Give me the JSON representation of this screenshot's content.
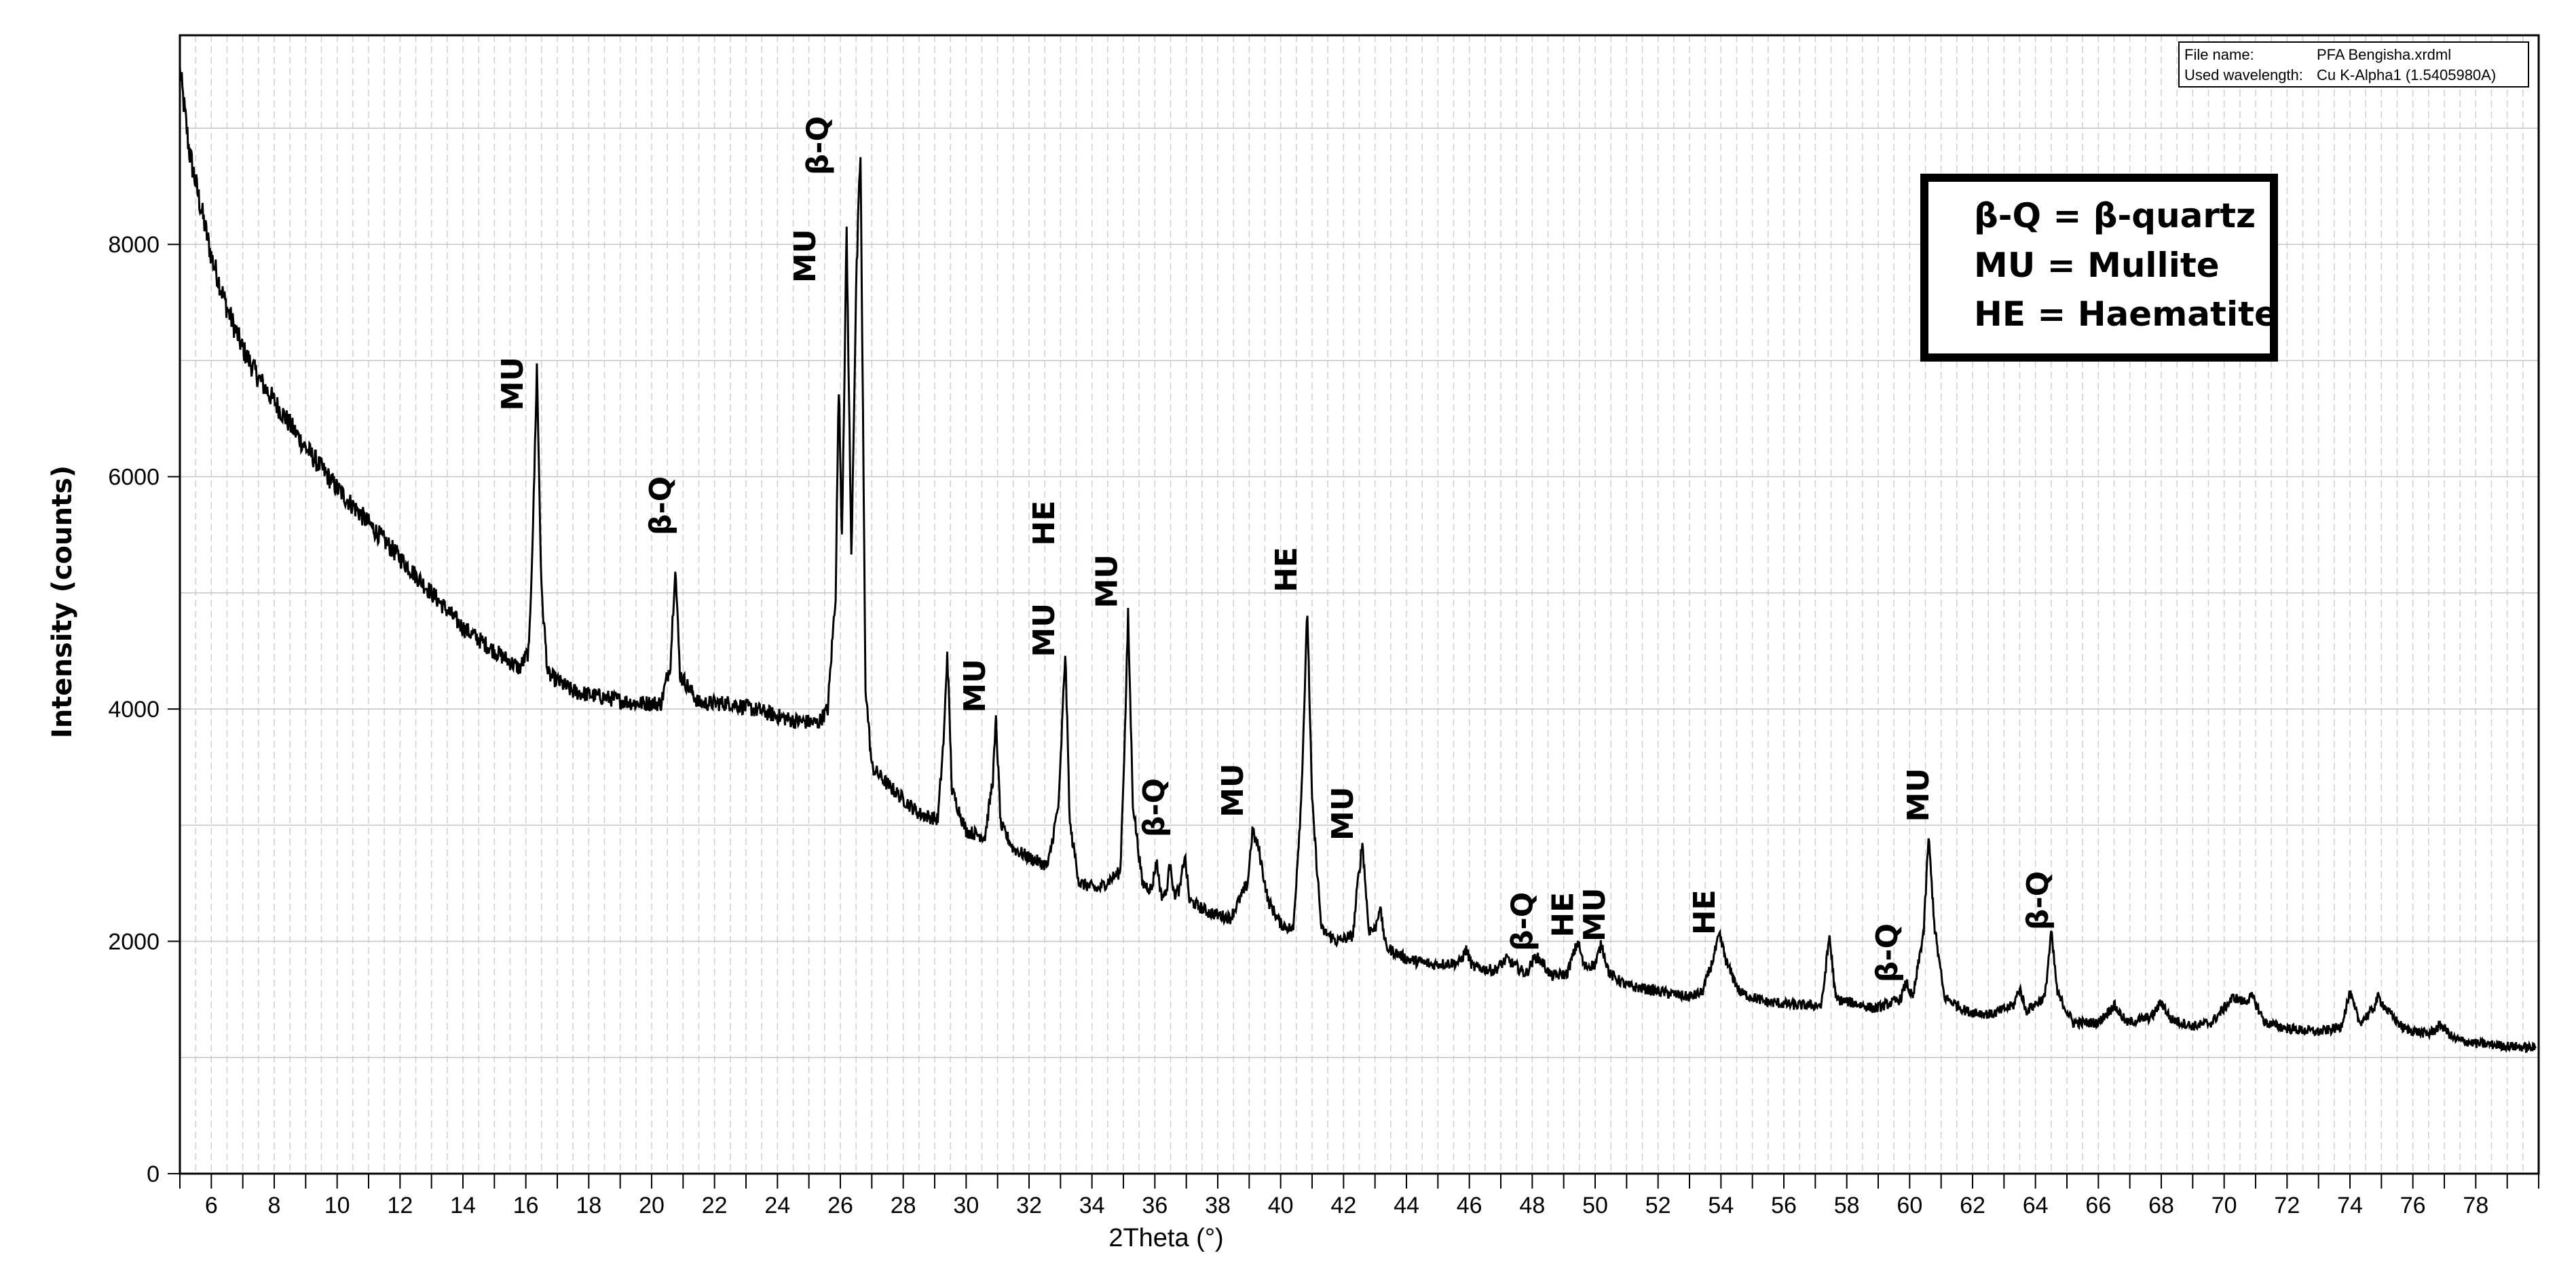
{
  "chart_data": {
    "type": "line",
    "xlabel": "2Theta (°)",
    "ylabel": "Intensity (counts)",
    "xlim": [
      5,
      80
    ],
    "ylim": [
      0,
      9800
    ],
    "grid": true,
    "xticks": [
      6,
      8,
      10,
      12,
      14,
      16,
      18,
      20,
      22,
      24,
      26,
      28,
      30,
      32,
      34,
      36,
      38,
      40,
      42,
      44,
      46,
      48,
      50,
      52,
      54,
      56,
      58,
      60,
      62,
      64,
      66,
      68,
      70,
      72,
      74,
      76,
      78
    ],
    "yticks": [
      0,
      2000,
      4000,
      6000,
      8000
    ],
    "series": [
      {
        "points": [
          [
            5.0,
            9500
          ],
          [
            5.3,
            8800
          ],
          [
            5.6,
            8400
          ],
          [
            6.0,
            7900
          ],
          [
            6.5,
            7450
          ],
          [
            7.0,
            7100
          ],
          [
            7.5,
            6850
          ],
          [
            8.0,
            6650
          ],
          [
            9.0,
            6250
          ],
          [
            10.0,
            5900
          ],
          [
            11.0,
            5600
          ],
          [
            12.0,
            5300
          ],
          [
            13.0,
            5000
          ],
          [
            14.0,
            4700
          ],
          [
            15.0,
            4500
          ],
          [
            15.8,
            4350
          ],
          [
            16.1,
            4500
          ],
          [
            16.25,
            5800
          ],
          [
            16.35,
            6950
          ],
          [
            16.5,
            5000
          ],
          [
            16.7,
            4300
          ],
          [
            17.5,
            4150
          ],
          [
            18.5,
            4100
          ],
          [
            19.5,
            4050
          ],
          [
            20.3,
            4050
          ],
          [
            20.6,
            4400
          ],
          [
            20.75,
            5250
          ],
          [
            20.9,
            4300
          ],
          [
            21.5,
            4050
          ],
          [
            22.5,
            4050
          ],
          [
            23.5,
            3980
          ],
          [
            24.5,
            3900
          ],
          [
            25.3,
            3880
          ],
          [
            25.6,
            4000
          ],
          [
            25.85,
            5000
          ],
          [
            25.95,
            6800
          ],
          [
            26.05,
            5500
          ],
          [
            26.2,
            8100
          ],
          [
            26.35,
            5300
          ],
          [
            26.5,
            7600
          ],
          [
            26.64,
            8800
          ],
          [
            26.8,
            4200
          ],
          [
            27.0,
            3500
          ],
          [
            27.5,
            3350
          ],
          [
            28.5,
            3100
          ],
          [
            29.1,
            3050
          ],
          [
            29.3,
            3800
          ],
          [
            29.4,
            4500
          ],
          [
            29.55,
            3300
          ],
          [
            30.0,
            2950
          ],
          [
            30.6,
            2900
          ],
          [
            30.85,
            3400
          ],
          [
            30.95,
            3900
          ],
          [
            31.1,
            3000
          ],
          [
            31.5,
            2800
          ],
          [
            32.0,
            2720
          ],
          [
            32.6,
            2650
          ],
          [
            32.95,
            3200
          ],
          [
            33.15,
            4500
          ],
          [
            33.3,
            3000
          ],
          [
            33.6,
            2500
          ],
          [
            34.2,
            2450
          ],
          [
            34.9,
            2600
          ],
          [
            35.05,
            3800
          ],
          [
            35.15,
            4800
          ],
          [
            35.3,
            3200
          ],
          [
            35.6,
            2500
          ],
          [
            35.9,
            2450
          ],
          [
            36.05,
            2700
          ],
          [
            36.2,
            2400
          ],
          [
            36.35,
            2400
          ],
          [
            36.5,
            2700
          ],
          [
            36.6,
            2400
          ],
          [
            36.8,
            2450
          ],
          [
            36.95,
            2750
          ],
          [
            37.1,
            2350
          ],
          [
            37.7,
            2250
          ],
          [
            38.4,
            2200
          ],
          [
            38.95,
            2500
          ],
          [
            39.1,
            2950
          ],
          [
            39.3,
            2800
          ],
          [
            39.6,
            2350
          ],
          [
            40.0,
            2150
          ],
          [
            40.4,
            2100
          ],
          [
            40.65,
            3200
          ],
          [
            40.85,
            4850
          ],
          [
            41.0,
            3200
          ],
          [
            41.3,
            2100
          ],
          [
            41.8,
            2000
          ],
          [
            42.3,
            2050
          ],
          [
            42.45,
            2500
          ],
          [
            42.6,
            2850
          ],
          [
            42.8,
            2100
          ],
          [
            43.0,
            2100
          ],
          [
            43.15,
            2300
          ],
          [
            43.35,
            1950
          ],
          [
            44.0,
            1850
          ],
          [
            44.8,
            1800
          ],
          [
            45.7,
            1820
          ],
          [
            45.9,
            1930
          ],
          [
            46.1,
            1780
          ],
          [
            46.8,
            1750
          ],
          [
            47.2,
            1850
          ],
          [
            47.4,
            1800
          ],
          [
            47.8,
            1720
          ],
          [
            48.1,
            1870
          ],
          [
            48.3,
            1830
          ],
          [
            48.6,
            1700
          ],
          [
            49.1,
            1720
          ],
          [
            49.45,
            2000
          ],
          [
            49.65,
            1780
          ],
          [
            50.0,
            1800
          ],
          [
            50.2,
            1980
          ],
          [
            50.45,
            1720
          ],
          [
            51.0,
            1620
          ],
          [
            52.0,
            1570
          ],
          [
            53.0,
            1520
          ],
          [
            53.4,
            1560
          ],
          [
            53.7,
            1800
          ],
          [
            53.95,
            2050
          ],
          [
            54.2,
            1800
          ],
          [
            54.6,
            1560
          ],
          [
            55.4,
            1480
          ],
          [
            56.4,
            1450
          ],
          [
            57.2,
            1450
          ],
          [
            57.45,
            2050
          ],
          [
            57.65,
            1500
          ],
          [
            58.2,
            1470
          ],
          [
            58.9,
            1420
          ],
          [
            59.7,
            1500
          ],
          [
            59.9,
            1650
          ],
          [
            60.1,
            1500
          ],
          [
            60.45,
            2100
          ],
          [
            60.6,
            2900
          ],
          [
            60.8,
            2100
          ],
          [
            61.1,
            1520
          ],
          [
            61.8,
            1400
          ],
          [
            62.6,
            1370
          ],
          [
            63.3,
            1450
          ],
          [
            63.5,
            1600
          ],
          [
            63.7,
            1400
          ],
          [
            64.3,
            1520
          ],
          [
            64.5,
            2080
          ],
          [
            64.7,
            1550
          ],
          [
            65.2,
            1300
          ],
          [
            66.0,
            1300
          ],
          [
            66.5,
            1450
          ],
          [
            66.9,
            1300
          ],
          [
            67.7,
            1350
          ],
          [
            68.0,
            1480
          ],
          [
            68.3,
            1330
          ],
          [
            69.0,
            1270
          ],
          [
            69.6,
            1300
          ],
          [
            70.3,
            1520
          ],
          [
            70.6,
            1480
          ],
          [
            70.9,
            1520
          ],
          [
            71.3,
            1300
          ],
          [
            72.0,
            1250
          ],
          [
            73.0,
            1220
          ],
          [
            73.7,
            1260
          ],
          [
            74.0,
            1550
          ],
          [
            74.3,
            1300
          ],
          [
            74.7,
            1400
          ],
          [
            74.9,
            1520
          ],
          [
            75.2,
            1400
          ],
          [
            75.7,
            1250
          ],
          [
            76.5,
            1200
          ],
          [
            76.9,
            1280
          ],
          [
            77.3,
            1160
          ],
          [
            78.0,
            1120
          ],
          [
            79.0,
            1100
          ],
          [
            79.9,
            1080
          ]
        ]
      }
    ],
    "annotations": [
      {
        "text": "MU",
        "x": 15.9,
        "y": 6800
      },
      {
        "text": "β-Q",
        "x": 20.6,
        "y": 5750
      },
      {
        "text": "MU",
        "x": 25.2,
        "y": 7900
      },
      {
        "text": "β-Q",
        "x": 25.6,
        "y": 8850
      },
      {
        "text": "MU",
        "x": 30.6,
        "y": 4200
      },
      {
        "text": "HE",
        "x": 32.8,
        "y": 5600
      },
      {
        "text": "MU",
        "x": 32.8,
        "y": 4680
      },
      {
        "text": "MU",
        "x": 34.8,
        "y": 5100
      },
      {
        "text": "β-Q",
        "x": 36.3,
        "y": 3150
      },
      {
        "text": "MU",
        "x": 38.8,
        "y": 3300
      },
      {
        "text": "HE",
        "x": 40.5,
        "y": 5200
      },
      {
        "text": "MU",
        "x": 42.3,
        "y": 3100
      },
      {
        "text": "β-Q",
        "x": 48.0,
        "y": 2170
      },
      {
        "text": "HE",
        "x": 49.3,
        "y": 2230
      },
      {
        "text": "MU",
        "x": 50.3,
        "y": 2230
      },
      {
        "text": "HE",
        "x": 53.8,
        "y": 2250
      },
      {
        "text": "β-Q",
        "x": 59.6,
        "y": 1900
      },
      {
        "text": "MU",
        "x": 60.6,
        "y": 3260
      },
      {
        "text": "β-Q",
        "x": 64.4,
        "y": 2350
      }
    ]
  },
  "info_box": {
    "file_name_label": "File name:",
    "file_name_value": "PFA Bengisha.xrdml",
    "wavelength_label": "Used wavelength:",
    "wavelength_value": "Cu K-Alpha1 (1.5405980A)"
  },
  "legend": {
    "lines": [
      "β-Q = β-quartz",
      "MU = Mullite",
      "HE = Haematite"
    ]
  }
}
